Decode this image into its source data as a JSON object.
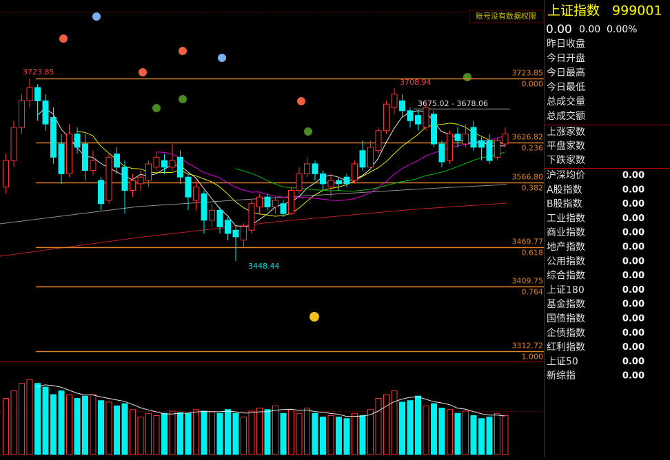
{
  "chart_data": {
    "type": "candlestick",
    "open": [
      3560,
      3600,
      3650,
      3690,
      3710,
      3690,
      3665,
      3625,
      3580,
      3640,
      3625,
      3585,
      3570,
      3540,
      3610,
      3590,
      3555,
      3565,
      3570,
      3590,
      3600,
      3590,
      3605,
      3575,
      3540,
      3550,
      3510,
      3525,
      3510,
      3495,
      3480,
      3495,
      3530,
      3545,
      3530,
      3535,
      3520,
      3555,
      3580,
      3595,
      3580,
      3560,
      3570,
      3575,
      3570,
      3615,
      3590,
      3615,
      3645,
      3680,
      3690,
      3675,
      3668,
      3650,
      3670,
      3625,
      3600,
      3640,
      3625,
      3650,
      3630,
      3630,
      3605,
      3625
    ],
    "high": [
      3610,
      3660,
      3700,
      3723.85,
      3715,
      3700,
      3680,
      3640,
      3655,
      3650,
      3640,
      3615,
      3575,
      3612,
      3620,
      3600,
      3580,
      3585,
      3600,
      3612,
      3610,
      3625,
      3615,
      3580,
      3570,
      3555,
      3535,
      3530,
      3515,
      3500,
      3505,
      3540,
      3550,
      3550,
      3545,
      3540,
      3560,
      3590,
      3605,
      3600,
      3585,
      3580,
      3575,
      3580,
      3600,
      3630,
      3630,
      3650,
      3690,
      3708.94,
      3700,
      3680,
      3675,
      3690,
      3675,
      3630,
      3645,
      3650,
      3655,
      3660,
      3635,
      3640,
      3635,
      3650
    ],
    "low": [
      3550,
      3590,
      3640,
      3680,
      3660,
      3645,
      3595,
      3565,
      3575,
      3610,
      3570,
      3578,
      3525,
      3535,
      3580,
      3520,
      3545,
      3555,
      3560,
      3585,
      3580,
      3585,
      3565,
      3525,
      3525,
      3490,
      3500,
      3490,
      3480,
      3448.44,
      3470,
      3490,
      3520,
      3525,
      3520,
      3515,
      3518,
      3550,
      3575,
      3570,
      3555,
      3545,
      3555,
      3560,
      3565,
      3585,
      3585,
      3610,
      3640,
      3670,
      3665,
      3650,
      3645,
      3645,
      3620,
      3590,
      3595,
      3620,
      3620,
      3615,
      3600,
      3595,
      3600,
      3620
    ],
    "close": [
      3600,
      3650,
      3690,
      3710,
      3690,
      3655,
      3605,
      3580,
      3640,
      3620,
      3585,
      3600,
      3535,
      3605,
      3590,
      3555,
      3570,
      3575,
      3595,
      3605,
      3590,
      3600,
      3575,
      3545,
      3560,
      3510,
      3525,
      3500,
      3490,
      3485,
      3500,
      3535,
      3545,
      3530,
      3540,
      3520,
      3555,
      3580,
      3595,
      3580,
      3565,
      3570,
      3565,
      3565,
      3595,
      3590,
      3620,
      3645,
      3685,
      3700,
      3675,
      3660,
      3655,
      3680,
      3625,
      3598,
      3640,
      3630,
      3640,
      3620,
      3620,
      3600,
      3630,
      3640
    ],
    "volume": [
      75,
      85,
      95,
      100,
      95,
      90,
      80,
      85,
      80,
      75,
      78,
      80,
      72,
      70,
      65,
      68,
      60,
      50,
      55,
      52,
      55,
      58,
      56,
      55,
      60,
      58,
      57,
      55,
      60,
      55,
      50,
      58,
      62,
      60,
      65,
      55,
      60,
      55,
      62,
      55,
      50,
      52,
      50,
      48,
      55,
      52,
      60,
      75,
      80,
      85,
      70,
      72,
      78,
      65,
      68,
      62,
      60,
      55,
      58,
      52,
      48,
      50,
      55,
      52
    ],
    "ylim": [
      3297,
      3842
    ],
    "volume_lim": [
      0,
      115
    ],
    "up_color": "#ff3232",
    "down_color": "#00f0f0",
    "ma_colors": [
      "#e8e8e8",
      "#e8e800",
      "#e000e0",
      "#00c000"
    ],
    "levels": [
      {
        "price": {
          "value": 3723.85,
          "label": "3723.85"
        },
        "ratio": {
          "value": 0,
          "label": "0.000"
        }
      },
      {
        "price": {
          "value": 3626.82,
          "label": "3626.82"
        },
        "ratio": {
          "value": 0.236,
          "label": "0.236"
        }
      },
      {
        "price": {
          "value": 3566.8,
          "label": "3566.80"
        },
        "ratio": {
          "value": 0.382,
          "label": "0.382"
        }
      },
      {
        "price": {
          "value": 3469.77,
          "label": "3469.77"
        },
        "ratio": {
          "value": 0.618,
          "label": "0.618"
        }
      },
      {
        "price": {
          "value": 3409.75,
          "label": "3409.75"
        },
        "ratio": {
          "value": 0.764,
          "label": "0.764"
        }
      },
      {
        "price": {
          "value": 3312.72,
          "label": "3312.72"
        },
        "ratio": {
          "value": 1,
          "label": "1.000"
        }
      }
    ],
    "range_note": "3675.02 - 3678.06",
    "notice": "账号没有数据权限"
  },
  "panel": {
    "name": "上证指数",
    "code": "999001",
    "price": "0.00",
    "change": "0.00",
    "change_pct": "0.00%",
    "group1": [
      "昨日收盘",
      "今日开盘",
      "今日最高",
      "今日最低",
      "总成交量",
      "总成交额"
    ],
    "group2": [
      "上涨家数",
      "平盘家数",
      "下跌家数"
    ],
    "indices": [
      {
        "name": "沪深均价",
        "value": "0.00"
      },
      {
        "name": "A股指数",
        "value": "0.00"
      },
      {
        "name": "B股指数",
        "value": "0.00"
      },
      {
        "name": "工业指数",
        "value": "0.00"
      },
      {
        "name": "商业指数",
        "value": "0.00"
      },
      {
        "name": "地产指数",
        "value": "0.00"
      },
      {
        "name": "公用指数",
        "value": "0.00"
      },
      {
        "name": "综合指数",
        "value": "0.00"
      },
      {
        "name": "上证180",
        "value": "0.00"
      },
      {
        "name": "基金指数",
        "value": "0.00"
      },
      {
        "name": "国债指数",
        "value": "0.00"
      },
      {
        "name": "企债指数",
        "value": "0.00"
      },
      {
        "name": "红利指数",
        "value": "0.00"
      },
      {
        "name": "上证50",
        "value": "0.00"
      },
      {
        "name": "新综指",
        "value": "0.00"
      }
    ]
  }
}
